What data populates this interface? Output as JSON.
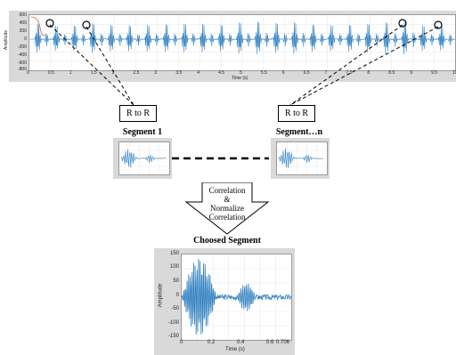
{
  "top_chart": {
    "ylabel": "Amplitude",
    "xlabel": "Time (s)",
    "y_ticks": [
      "600",
      "400",
      "200",
      "0",
      "-200",
      "-400",
      "-600",
      "-800"
    ],
    "x_ticks": [
      "0",
      "0.5",
      "1",
      "1.5",
      "2",
      "2.5",
      "3",
      "3.5",
      "4",
      "4.5",
      "5",
      "5.5",
      "6",
      "6.5",
      "7",
      "7.5",
      "8",
      "8.5",
      "9",
      "9.5",
      "10"
    ]
  },
  "labels": {
    "r_to_r_left": "R to R",
    "r_to_r_right": "R to R",
    "segment_1": "Segment 1",
    "segment_n": "Segment…n",
    "arrow_line1": "Correlation",
    "arrow_line2": "&",
    "arrow_line3": "Normalize",
    "arrow_line4": "Correlation",
    "choosed_title": "Choosed Segment"
  },
  "bottom_chart": {
    "ylabel": "Amplitude",
    "xlabel": "Time (s)",
    "y_ticks": [
      "150",
      "100",
      "50",
      "0",
      "-50",
      "-100",
      "-150"
    ],
    "x_ticks": [
      "0",
      "0.2",
      "0.4",
      "0.6",
      "0.706"
    ]
  },
  "colors": {
    "signal": "#2f7fbf",
    "accent": "#e0504a",
    "panel": "#d9d9d9"
  }
}
